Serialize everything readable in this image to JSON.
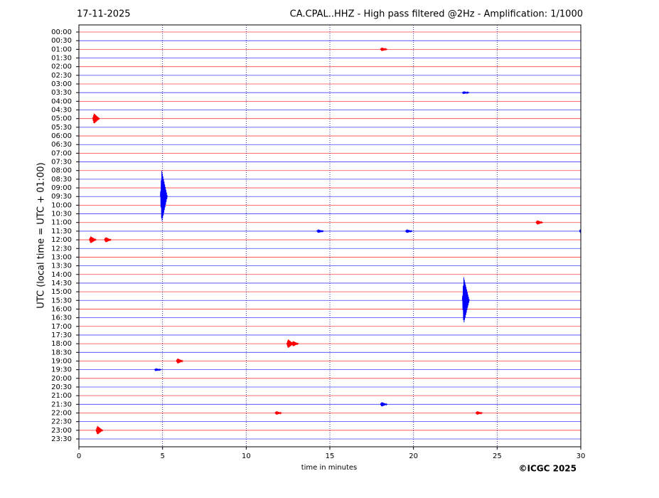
{
  "chart_data": {
    "type": "helicorder",
    "date": "17-11-2025",
    "title": "CA.CPAL..HHZ - High pass filtered @2Hz - Amplification: 1/1000",
    "y_label": "UTC (local time = UTC + 01:00)",
    "x_label": "time in minutes",
    "copyright": "©ICGC 2025",
    "categories": [
      "00:00",
      "00:30",
      "01:00",
      "01:30",
      "02:00",
      "02:30",
      "03:00",
      "03:30",
      "04:00",
      "04:30",
      "05:00",
      "05:30",
      "06:00",
      "06:30",
      "07:00",
      "07:30",
      "08:00",
      "08:30",
      "09:00",
      "09:30",
      "10:00",
      "10:30",
      "11:00",
      "11:30",
      "12:00",
      "12:30",
      "13:00",
      "13:30",
      "14:00",
      "14:30",
      "15:00",
      "15:30",
      "16:00",
      "16:30",
      "17:00",
      "17:30",
      "18:00",
      "18:30",
      "19:00",
      "19:30",
      "20:00",
      "20:30",
      "21:00",
      "21:30",
      "22:00",
      "22:30",
      "23:00",
      "23:30"
    ],
    "row_colors": [
      "#ff0000",
      "#0000ff"
    ],
    "xlim": [
      0,
      30
    ],
    "xticks": [
      0,
      5,
      10,
      15,
      20,
      25,
      30
    ],
    "grid": true,
    "events": [
      {
        "row": 2,
        "x": 18.1,
        "amplitude": 0.2
      },
      {
        "row": 7,
        "x": 23.0,
        "amplitude": 0.15
      },
      {
        "row": 10,
        "x": 0.9,
        "amplitude": 0.6
      },
      {
        "row": 19,
        "x": 4.95,
        "amplitude": 3
      },
      {
        "row": 22,
        "x": 27.4,
        "amplitude": 0.25
      },
      {
        "row": 23,
        "x": 14.3,
        "amplitude": 0.2
      },
      {
        "row": 23,
        "x": 19.6,
        "amplitude": 0.2
      },
      {
        "row": 23,
        "x": 30,
        "amplitude": 0.3
      },
      {
        "row": 24,
        "x": 0.7,
        "amplitude": 0.4
      },
      {
        "row": 24,
        "x": 1.6,
        "amplitude": 0.3
      },
      {
        "row": 31,
        "x": 23.0,
        "amplitude": 2.7
      },
      {
        "row": 36,
        "x": 12.5,
        "amplitude": 0.5
      },
      {
        "row": 36,
        "x": 12.8,
        "amplitude": 0.3
      },
      {
        "row": 38,
        "x": 5.9,
        "amplitude": 0.3
      },
      {
        "row": 39,
        "x": 4.6,
        "amplitude": 0.15
      },
      {
        "row": 43,
        "x": 18.1,
        "amplitude": 0.25
      },
      {
        "row": 44,
        "x": 11.8,
        "amplitude": 0.2
      },
      {
        "row": 44,
        "x": 23.8,
        "amplitude": 0.2
      },
      {
        "row": 46,
        "x": 1.1,
        "amplitude": 0.5
      }
    ]
  }
}
